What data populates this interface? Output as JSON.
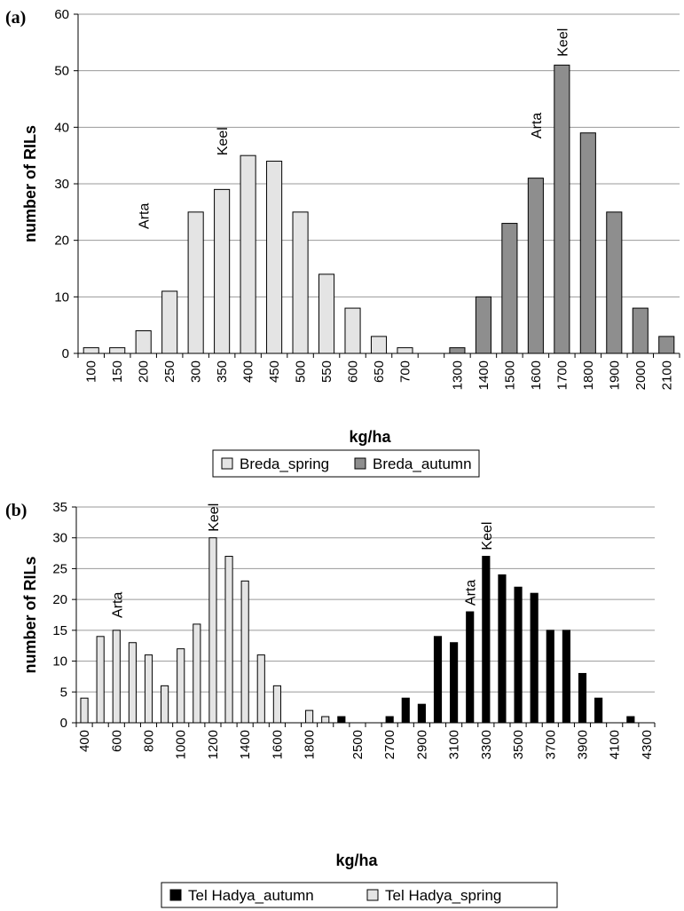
{
  "chart_data": [
    {
      "type": "bar",
      "panel_label": "(a)",
      "ylabel": "number of RILs",
      "xlabel": "kg/ha",
      "ylim": [
        0,
        60
      ],
      "yticks": [
        0,
        10,
        20,
        30,
        40,
        50,
        60
      ],
      "grid": true,
      "legend_placement": "bottom",
      "categories": [
        "100",
        "150",
        "200",
        "250",
        "300",
        "350",
        "400",
        "450",
        "500",
        "550",
        "600",
        "650",
        "700",
        "",
        "1300",
        "1400",
        "1500",
        "1600",
        "1700",
        "1800",
        "1900",
        "2000",
        "2100"
      ],
      "series": [
        {
          "name": "Breda_spring",
          "color": "#e4e4e4",
          "values": [
            1,
            1,
            4,
            11,
            25,
            29,
            35,
            34,
            25,
            14,
            8,
            3,
            1,
            null,
            null,
            null,
            null,
            null,
            null,
            null,
            null,
            null,
            null
          ]
        },
        {
          "name": "Breda_autumn",
          "color": "#8e8e8e",
          "values": [
            null,
            null,
            null,
            null,
            null,
            null,
            null,
            null,
            null,
            null,
            null,
            null,
            null,
            null,
            1,
            10,
            23,
            31,
            51,
            39,
            25,
            8,
            3
          ]
        }
      ],
      "annotations": [
        {
          "text": "Arta",
          "category_index": 2,
          "y": 22
        },
        {
          "text": "Keel",
          "category_index": 5,
          "y": 35
        },
        {
          "text": "Arta",
          "category_index": 17,
          "y": 38
        },
        {
          "text": "Keel",
          "category_index": 18,
          "y": 52.5
        }
      ]
    },
    {
      "type": "bar",
      "panel_label": "(b)",
      "ylabel": "number of RILs",
      "xlabel": "kg/ha",
      "ylim": [
        0,
        35
      ],
      "yticks": [
        0,
        5,
        10,
        15,
        20,
        25,
        30,
        35
      ],
      "grid": true,
      "legend_placement": "bottom",
      "categories": [
        "400",
        "500",
        "600",
        "700",
        "800",
        "900",
        "1000",
        "1100",
        "1200",
        "1300",
        "1400",
        "1500",
        "1600",
        "1700",
        "1800",
        "1900",
        "",
        "2500",
        "2600",
        "2700",
        "2800",
        "2900",
        "3000",
        "3100",
        "3200",
        "3300",
        "3400",
        "3500",
        "3600",
        "3700",
        "3800",
        "3900",
        "4000",
        "4100",
        "4200",
        "4300"
      ],
      "tick_labels": [
        "400",
        "",
        "600",
        "",
        "800",
        "",
        "1000",
        "",
        "1200",
        "",
        "1400",
        "",
        "1600",
        "",
        "1800",
        "",
        "",
        "2500",
        "",
        "2700",
        "",
        "2900",
        "",
        "3100",
        "",
        "3300",
        "",
        "3500",
        "",
        "3700",
        "",
        "3900",
        "",
        "4100",
        "",
        "4300"
      ],
      "series": [
        {
          "name": "Tel Hadya_autumn",
          "color": "#000000",
          "values": [
            null,
            null,
            null,
            null,
            null,
            null,
            null,
            null,
            null,
            null,
            null,
            null,
            null,
            null,
            null,
            null,
            1,
            null,
            null,
            1,
            4,
            3,
            14,
            13,
            18,
            27,
            24,
            22,
            21,
            15,
            15,
            8,
            4,
            null,
            1,
            null
          ]
        },
        {
          "name": "Tel Hadya_spring",
          "color": "#e4e4e4",
          "values": [
            4,
            14,
            15,
            13,
            11,
            6,
            12,
            16,
            30,
            27,
            23,
            11,
            6,
            null,
            2,
            1,
            null,
            null,
            null,
            null,
            null,
            null,
            null,
            null,
            null,
            null,
            null,
            null,
            null,
            null,
            null,
            null,
            null,
            null,
            null,
            null
          ]
        }
      ],
      "annotations": [
        {
          "text": "Arta",
          "category_index": 2,
          "y": 17
        },
        {
          "text": "Keel",
          "category_index": 8,
          "y": 31
        },
        {
          "text": "Arta",
          "category_index": 24,
          "y": 19
        },
        {
          "text": "Keel",
          "category_index": 25,
          "y": 28
        }
      ]
    }
  ]
}
